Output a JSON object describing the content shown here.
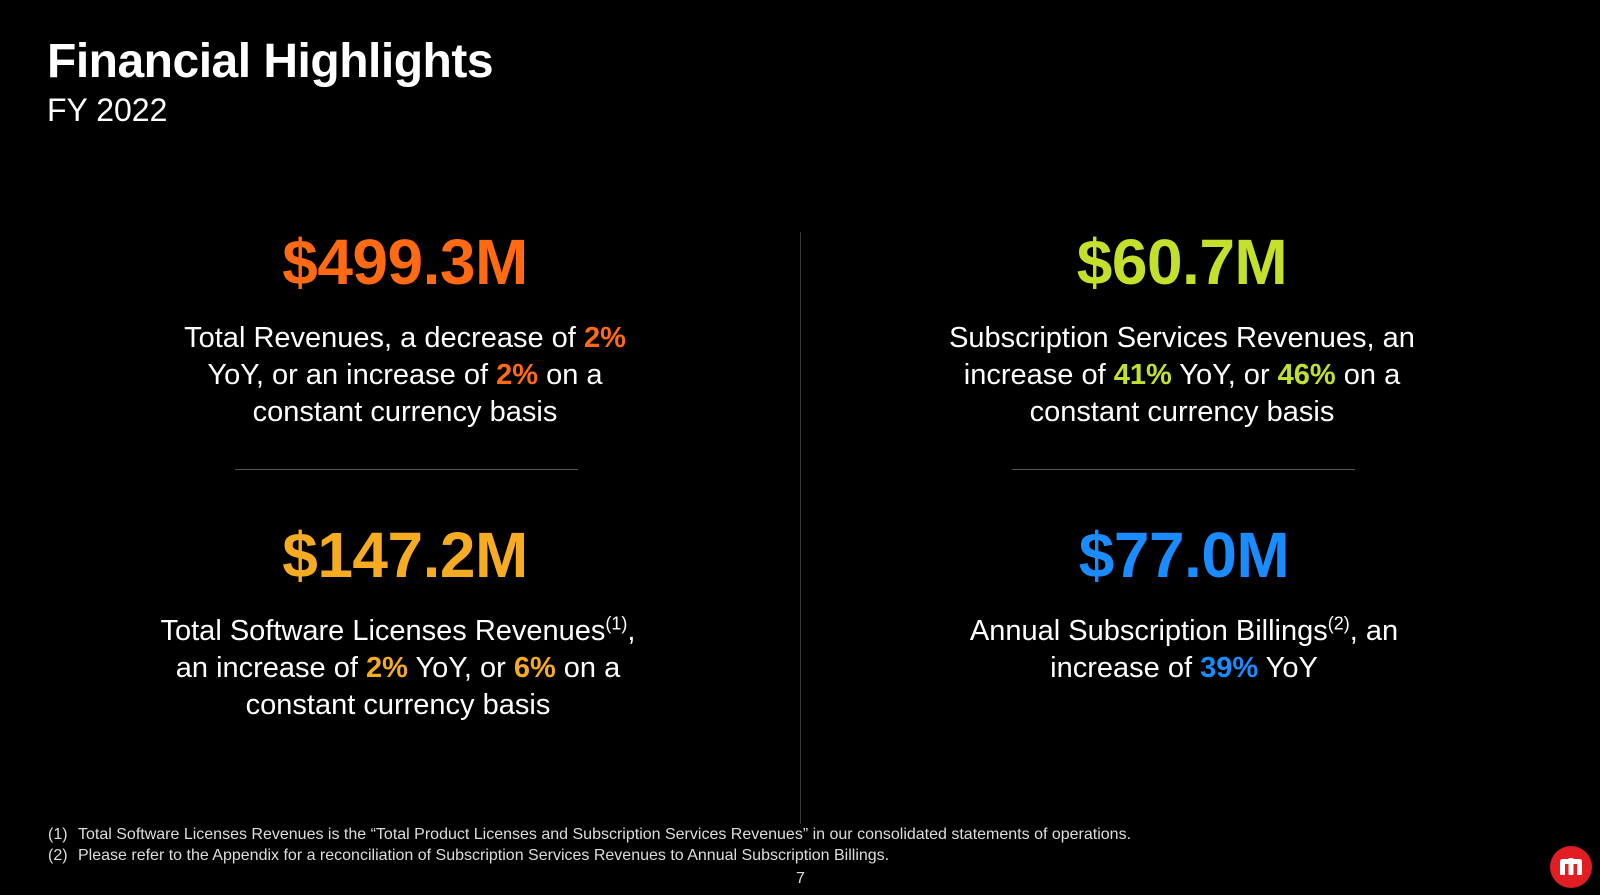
{
  "header": {
    "title": "Financial Highlights",
    "subtitle": "FY 2022"
  },
  "colors": {
    "orange": "#ff6a13",
    "lime": "#c5e02c",
    "amber": "#f5ac22",
    "blue": "#1a8cff"
  },
  "metrics": {
    "total_revenues": {
      "figure": "$499.3M",
      "line1_pre": "Total Revenues, a decrease of ",
      "pct1": "2%",
      "line2_pre": "YoY, or an increase of ",
      "pct2": "2%",
      "line2_post": " on a",
      "line3": "constant currency basis"
    },
    "subscription_services": {
      "figure": "$60.7M",
      "line1": "Subscription Services Revenues, an",
      "line2_pre": "increase of ",
      "pct1": "41%",
      "line2_mid": " YoY, or ",
      "pct2": "46%",
      "line2_post": " on a",
      "line3": "constant currency basis"
    },
    "software_licenses": {
      "figure": "$147.2M",
      "line1_pre": "Total Software Licenses Revenues",
      "line1_sup": "(1)",
      "line1_post": ",",
      "line2_pre": "an increase of ",
      "pct1": "2%",
      "line2_mid": " YoY, or ",
      "pct2": "6%",
      "line2_post": " on a",
      "line3": "constant currency basis"
    },
    "annual_billings": {
      "figure": "$77.0M",
      "line1_pre": "Annual Subscription Billings",
      "line1_sup": "(2)",
      "line1_post": ", an",
      "line2_pre": "increase of ",
      "pct1": "39%",
      "line2_post": " YoY"
    }
  },
  "footnotes": [
    {
      "num": "(1)",
      "text": "Total Software Licenses Revenues is the “Total Product Licenses and Subscription Services Revenues” in our consolidated statements of operations."
    },
    {
      "num": "(2)",
      "text": "Please refer to the Appendix for a reconciliation of Subscription Services Revenues to Annual Subscription Billings."
    }
  ],
  "page_number": "7",
  "logo": {
    "icon": "microstrategy-logo-icon"
  }
}
